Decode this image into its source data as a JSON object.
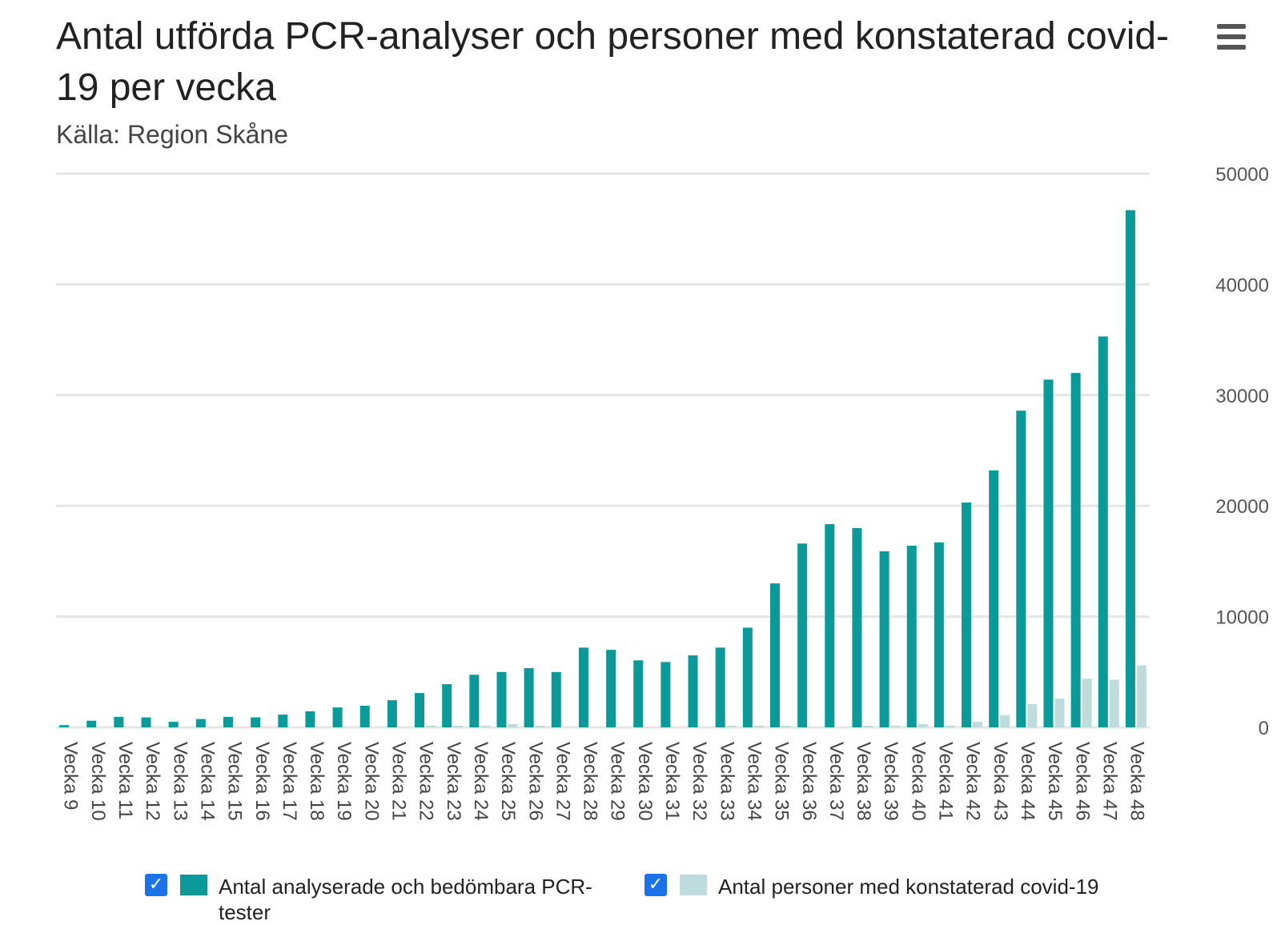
{
  "header": {
    "title": "Antal utförda PCR-analyser och personer med konstaterad covid-19 per vecka",
    "subtitle": "Källa: Region Skåne",
    "menu_icon": "hamburger-menu-icon"
  },
  "colors": {
    "tests": "#0a9a9a",
    "cases": "#bfdcdc",
    "grid": "#e6e6e6",
    "checkbox": "#1a73e8"
  },
  "legend": {
    "items": [
      {
        "label": "Antal analyserade och bedömbara PCR-tester",
        "checked": true
      },
      {
        "label": "Antal personer med konstaterad covid-19",
        "checked": true
      }
    ]
  },
  "chart_data": {
    "type": "bar",
    "categories": [
      "Vecka 9",
      "Vecka 10",
      "Vecka 11",
      "Vecka 12",
      "Vecka 13",
      "Vecka 14",
      "Vecka 15",
      "Vecka 16",
      "Vecka 17",
      "Vecka 18",
      "Vecka 19",
      "Vecka 20",
      "Vecka 21",
      "Vecka 22",
      "Vecka 23",
      "Vecka 24",
      "Vecka 25",
      "Vecka 26",
      "Vecka 27",
      "Vecka 28",
      "Vecka 29",
      "Vecka 30",
      "Vecka 31",
      "Vecka 32",
      "Vecka 33",
      "Vecka 34",
      "Vecka 35",
      "Vecka 36",
      "Vecka 37",
      "Vecka 38",
      "Vecka 39",
      "Vecka 40",
      "Vecka 41",
      "Vecka 42",
      "Vecka 43",
      "Vecka 44",
      "Vecka 45",
      "Vecka 46",
      "Vecka 47",
      "Vecka 48"
    ],
    "series": [
      {
        "name": "Antal analyserade och bedömbara PCR-tester",
        "values": [
          200,
          600,
          950,
          900,
          500,
          750,
          950,
          900,
          1150,
          1450,
          1800,
          1950,
          2450,
          3100,
          3900,
          4750,
          5000,
          5350,
          5000,
          7200,
          7000,
          6050,
          5900,
          6500,
          7200,
          9000,
          13000,
          16600,
          18350,
          18000,
          15900,
          16400,
          16700,
          20300,
          23200,
          28600,
          31400,
          32000,
          35300,
          46700
        ]
      },
      {
        "name": "Antal personer med konstaterad covid-19",
        "values": [
          0,
          0,
          0,
          0,
          0,
          0,
          0,
          0,
          0,
          0,
          0,
          0,
          0,
          150,
          150,
          150,
          300,
          150,
          0,
          0,
          0,
          0,
          0,
          0,
          150,
          150,
          150,
          0,
          0,
          150,
          150,
          300,
          150,
          500,
          1100,
          2100,
          2600,
          4400,
          4300,
          5600
        ]
      }
    ],
    "y_ticks": [
      "0",
      "10000",
      "20000",
      "30000",
      "40000",
      "50000"
    ],
    "ylim": [
      0,
      50000
    ],
    "y_axis_side": "right",
    "grid": true,
    "legend_position": "bottom"
  }
}
